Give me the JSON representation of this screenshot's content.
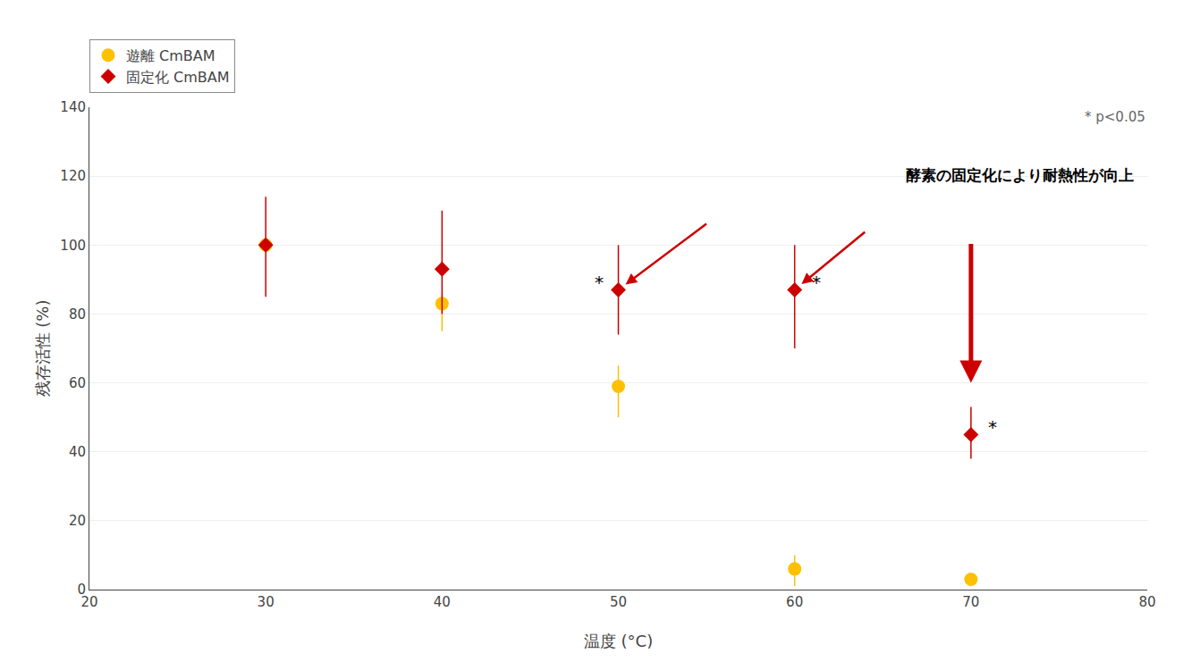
{
  "chart_data": {
    "type": "scatter",
    "x": [
      30,
      40,
      50,
      60,
      70
    ],
    "series": [
      {
        "name": "遊離 CmBAM",
        "color": "#FFC000",
        "marker": "circle",
        "values": [
          100,
          83,
          59,
          6,
          3
        ],
        "error_upper": [
          2,
          3,
          6,
          4,
          1
        ],
        "error_lower": [
          2,
          8,
          9,
          5,
          1
        ]
      },
      {
        "name": "固定化 CmBAM",
        "color": "#CC0000",
        "marker": "diamond",
        "values": [
          100,
          93,
          87,
          87,
          45
        ],
        "error_upper": [
          14,
          17,
          13,
          13,
          8
        ],
        "error_lower": [
          15,
          13,
          13,
          17,
          7
        ]
      }
    ],
    "xlabel": "温度 (°C)",
    "ylabel": "残存活性 (%)",
    "annotations": [
      {
        "text": "*",
        "x": 50
      },
      {
        "text": "*",
        "x": 60
      },
      {
        "text": "*",
        "x": 70
      },
      {
        "text": "酵素の固定化により耐熱性が向上"
      },
      {
        "text": "* p<0.05"
      }
    ],
    "xlim": [
      20,
      80
    ],
    "ylim": [
      0,
      140
    ],
    "xticks": [
      20,
      30,
      40,
      50,
      60,
      70,
      80
    ],
    "yticks": [
      0,
      20,
      40,
      60,
      80,
      100,
      120,
      140
    ],
    "grid": "y",
    "legend": "upper left"
  }
}
